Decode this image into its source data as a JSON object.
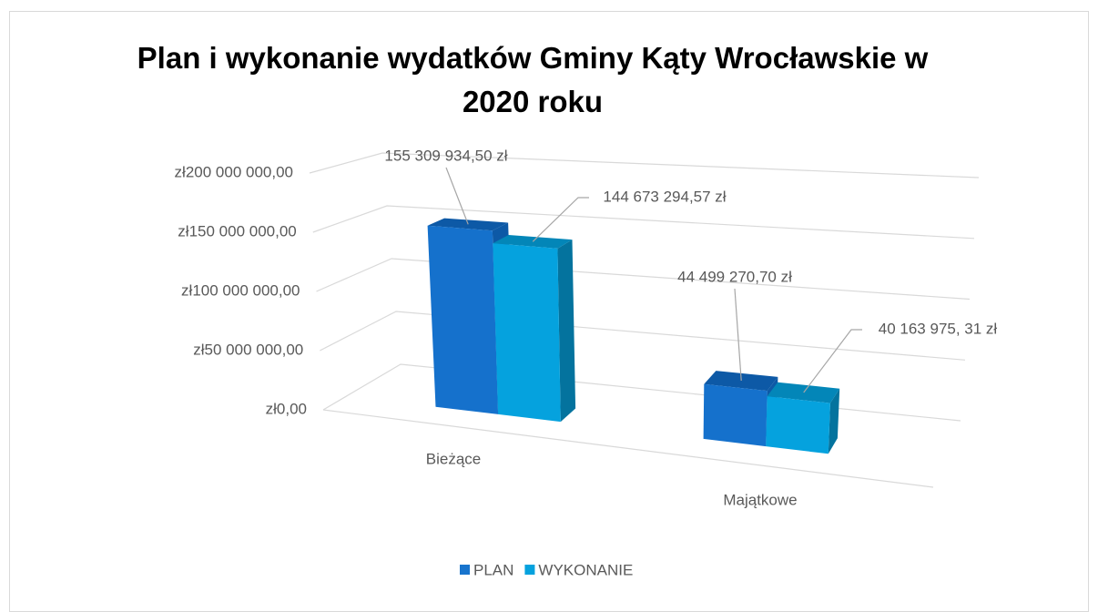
{
  "chart_data": {
    "type": "bar3d",
    "title": "Plan i wykonanie wydatków Gminy Kąty Wrocławskie w 2020 roku",
    "categories": [
      "Bieżące",
      "Majątkowe"
    ],
    "series": [
      {
        "name": "PLAN",
        "color": "#1874cd",
        "values": [
          155309934.5,
          44499270.7
        ],
        "value_labels": [
          "155 309 934,50 zł",
          "44 499 270,70 zł"
        ]
      },
      {
        "name": "WYKONANIE",
        "color": "#05a2de",
        "values": [
          144673294.57,
          40163975.31
        ],
        "value_labels": [
          "144 673 294,57 zł",
          "40 163 975, 31 zł"
        ]
      }
    ],
    "ylim": [
      0,
      200000000
    ],
    "yticks": [
      {
        "value": 0,
        "label": "zł0,00"
      },
      {
        "value": 50000000,
        "label": "zł50 000 000,00"
      },
      {
        "value": 100000000,
        "label": "zł100 000 000,00"
      },
      {
        "value": 150000000,
        "label": "zł150 000 000,00"
      },
      {
        "value": 200000000,
        "label": "zł200 000 000,00"
      }
    ],
    "grid": true,
    "legend": "bottom"
  }
}
